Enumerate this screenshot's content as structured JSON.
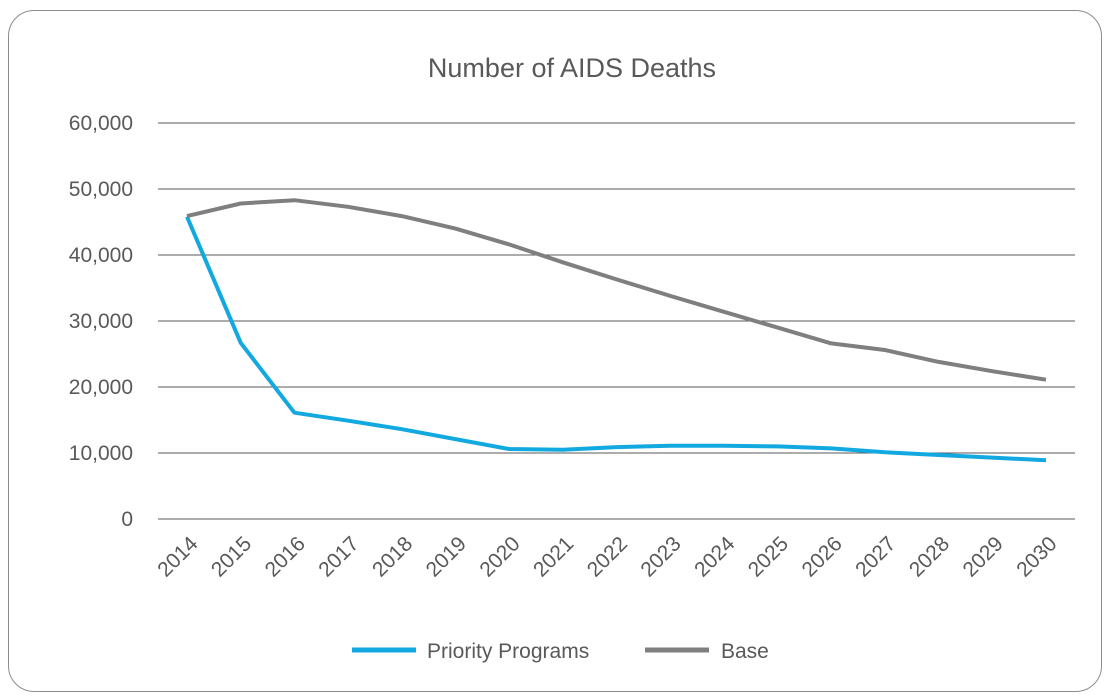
{
  "chart_data": {
    "type": "line",
    "title": "Number of AIDS Deaths",
    "xlabel": "",
    "ylabel": "",
    "x": [
      "2014",
      "2015",
      "2016",
      "2017",
      "2018",
      "2019",
      "2020",
      "2021",
      "2022",
      "2023",
      "2024",
      "2025",
      "2026",
      "2027",
      "2028",
      "2029",
      "2030"
    ],
    "ylim": [
      0,
      60000
    ],
    "yticks": [
      0,
      10000,
      20000,
      30000,
      40000,
      50000,
      60000
    ],
    "ytick_labels": [
      "0",
      "10,000",
      "20,000",
      "30,000",
      "40,000",
      "50,000",
      "60,000"
    ],
    "grid": true,
    "legend": "bottom",
    "series": [
      {
        "name": "Priority Programs",
        "color": "#12a9e0",
        "values": [
          45800,
          26700,
          16100,
          14900,
          13600,
          12100,
          10600,
          10500,
          10900,
          11100,
          11100,
          11000,
          10700,
          10100,
          9700,
          9300,
          8900
        ]
      },
      {
        "name": "Base",
        "color": "#7f7f7f",
        "values": [
          45900,
          47800,
          48300,
          47300,
          45900,
          44000,
          41600,
          38900,
          36300,
          33800,
          31400,
          29000,
          26600,
          25600,
          23800,
          22400,
          21100
        ]
      }
    ]
  }
}
